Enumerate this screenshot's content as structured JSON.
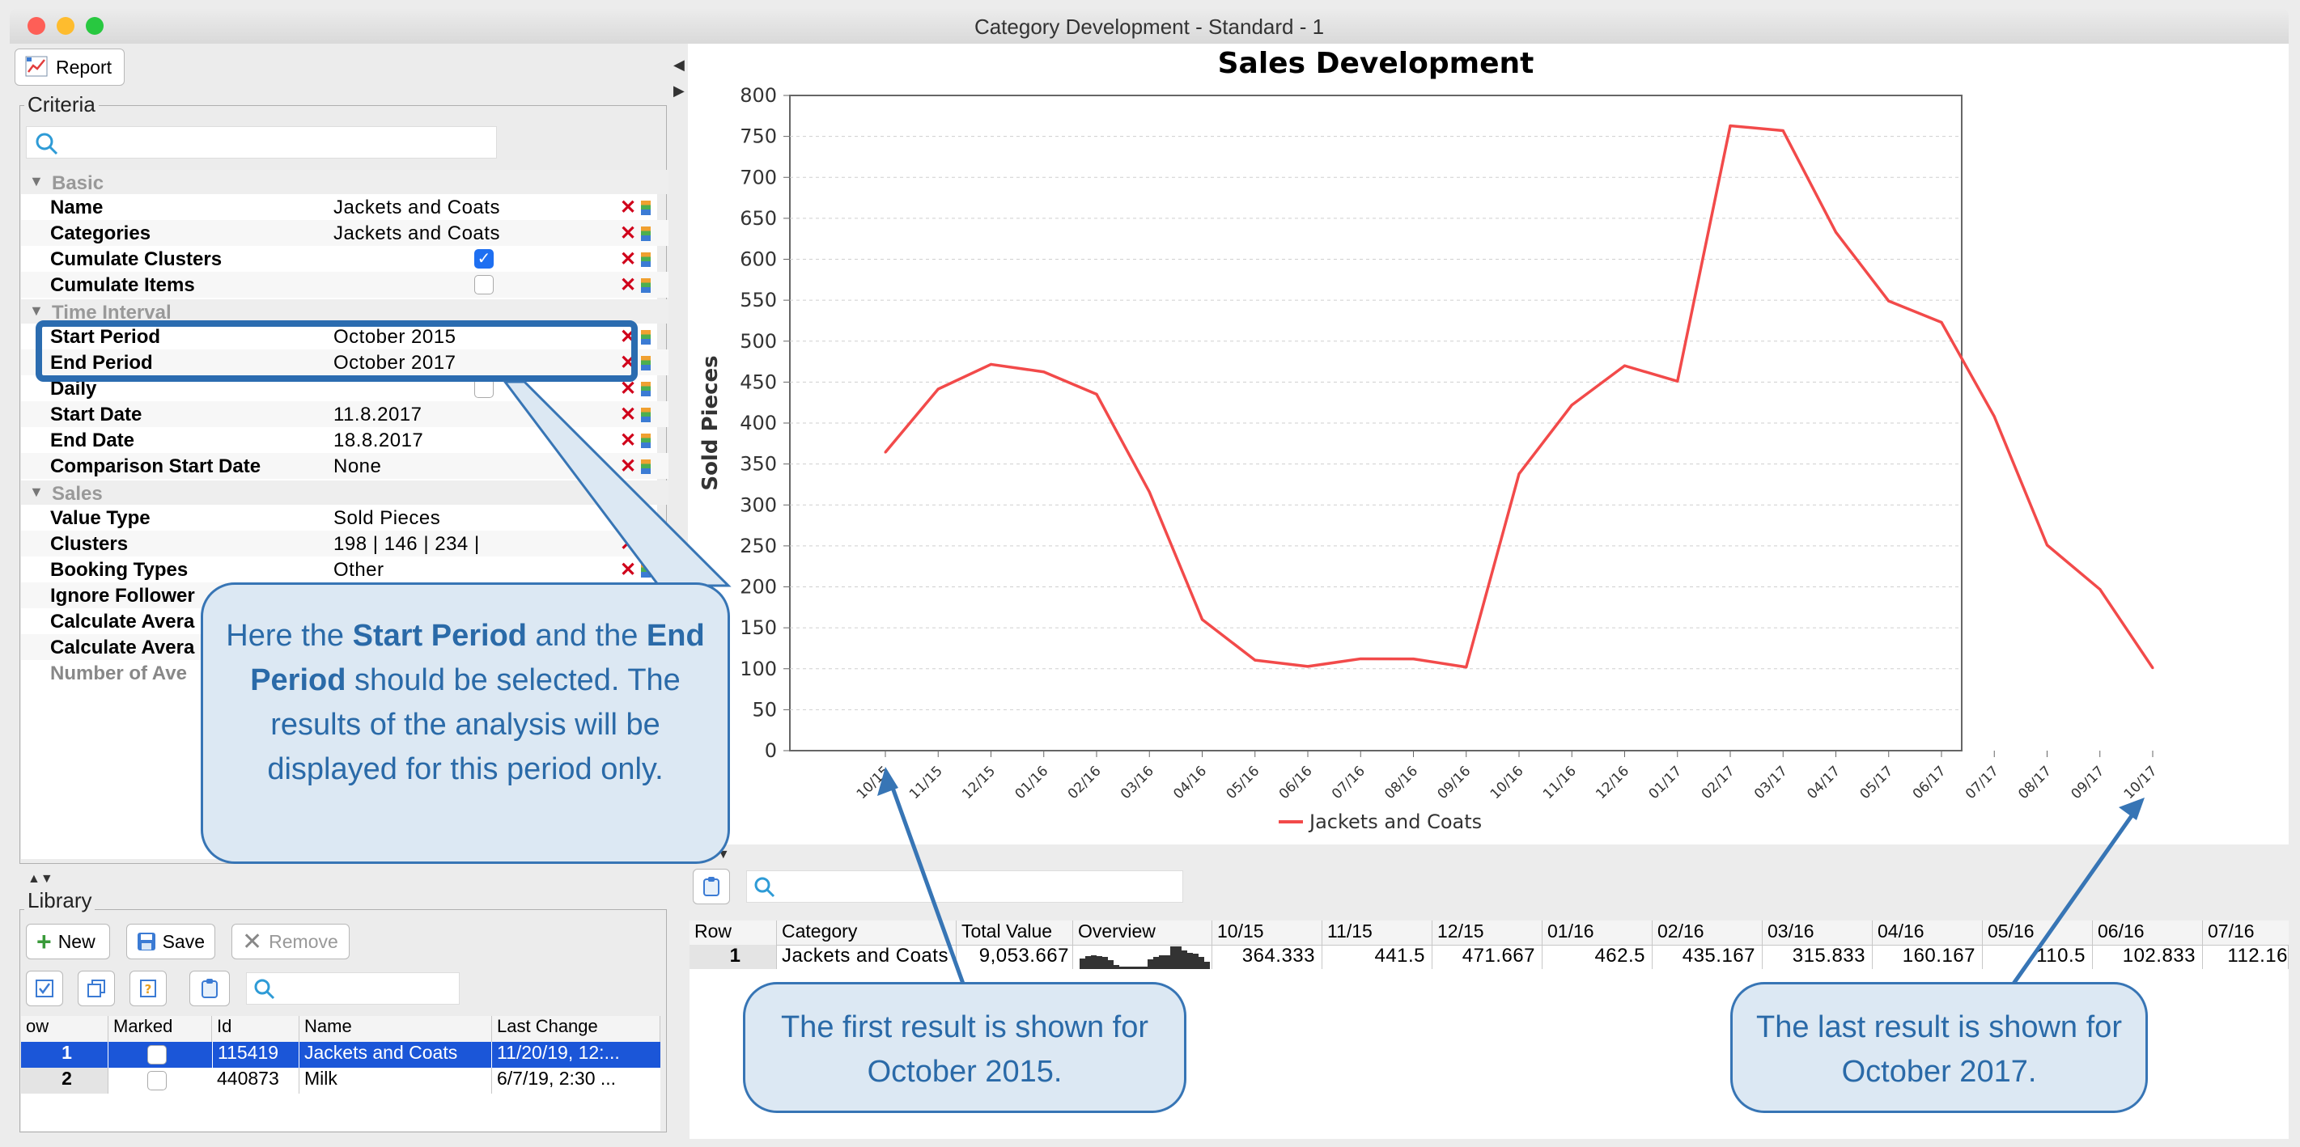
{
  "window": {
    "title": "Category Development - Standard - 1"
  },
  "toolbar": {
    "report_label": "Report"
  },
  "criteria": {
    "label": "Criteria",
    "sections": {
      "basic": "Basic",
      "time_interval": "Time Interval",
      "sales": "Sales"
    },
    "rows": {
      "name": {
        "key": "Name",
        "value": "Jackets and Coats"
      },
      "categories": {
        "key": "Categories",
        "value": "Jackets and Coats"
      },
      "cumulate_clusters": {
        "key": "Cumulate Clusters",
        "checked": true
      },
      "cumulate_items": {
        "key": "Cumulate Items",
        "checked": false
      },
      "start_period": {
        "key": "Start Period",
        "value": "October 2015"
      },
      "end_period": {
        "key": "End Period",
        "value": "October 2017"
      },
      "daily": {
        "key": "Daily",
        "checked": false
      },
      "start_date": {
        "key": "Start Date",
        "value": "11.8.2017"
      },
      "end_date": {
        "key": "End Date",
        "value": "18.8.2017"
      },
      "comparison_start_date": {
        "key": "Comparison Start Date",
        "value": "None"
      },
      "value_type": {
        "key": "Value Type",
        "value": "Sold Pieces"
      },
      "clusters": {
        "key": "Clusters",
        "value": "198 | 146 | 234 |"
      },
      "booking_types": {
        "key": "Booking Types",
        "value": "Other"
      },
      "ignore_followers": {
        "key": "Ignore Follower"
      },
      "calc_avg_1": {
        "key": "Calculate Avera"
      },
      "calc_avg_2": {
        "key": "Calculate Avera"
      },
      "number_of_ave": {
        "key": "Number of Ave"
      }
    }
  },
  "library": {
    "label": "Library",
    "new_label": "New",
    "save_label": "Save",
    "remove_label": "Remove",
    "columns": [
      "ow",
      "Marked",
      "Id",
      "Name",
      "Last Change"
    ],
    "rows": [
      {
        "row": "1",
        "id": "115419",
        "name": "Jackets and Coats",
        "last_change": "11/20/19, 12:..."
      },
      {
        "row": "2",
        "id": "440873",
        "name": "Milk",
        "last_change": "6/7/19, 2:30 ..."
      }
    ]
  },
  "results": {
    "columns": [
      "Row",
      "Category",
      "Total Value",
      "Overview",
      "10/15",
      "11/15",
      "12/15",
      "01/16",
      "02/16",
      "03/16",
      "04/16",
      "05/16",
      "06/16",
      "07/16"
    ],
    "row": [
      "1",
      "Jackets and Coats",
      "9,053.667",
      "",
      "364.333",
      "441.5",
      "471.667",
      "462.5",
      "435.167",
      "315.833",
      "160.167",
      "110.5",
      "102.833",
      "112.16"
    ]
  },
  "chart_data": {
    "type": "line",
    "title": "Sales Development",
    "ylabel": "Sold Pieces",
    "xlabel": "",
    "ylim": [
      0,
      800
    ],
    "yticks": [
      0,
      50,
      100,
      150,
      200,
      250,
      300,
      350,
      400,
      450,
      500,
      550,
      600,
      650,
      700,
      750,
      800
    ],
    "grid": true,
    "legend": "bottom",
    "color": "#f24a4a",
    "categories": [
      "10/15",
      "11/15",
      "12/15",
      "01/16",
      "02/16",
      "03/16",
      "04/16",
      "05/16",
      "06/16",
      "07/16",
      "08/16",
      "09/16",
      "10/16",
      "11/16",
      "12/16",
      "01/17",
      "02/17",
      "03/17",
      "04/17",
      "05/17",
      "06/17",
      "07/17",
      "08/17",
      "09/17",
      "10/17"
    ],
    "series": [
      {
        "name": "Jackets and Coats",
        "values": [
          364.333,
          441.5,
          471.667,
          462.5,
          435.167,
          315.833,
          160.167,
          110.5,
          102.833,
          112.16,
          112,
          102,
          338,
          422,
          470,
          451,
          763,
          757,
          633,
          549,
          523,
          408,
          251,
          197,
          101
        ]
      }
    ]
  },
  "callouts": {
    "main_1": "Here the ",
    "main_b1": "Start Period",
    "main_2": " and the ",
    "main_b2": "End Period",
    "main_3": " should be selected. The results of the analysis will be displayed for this period only.",
    "first": "The first result is shown for October 2015.",
    "last": "The last result is shown for October 2017."
  }
}
